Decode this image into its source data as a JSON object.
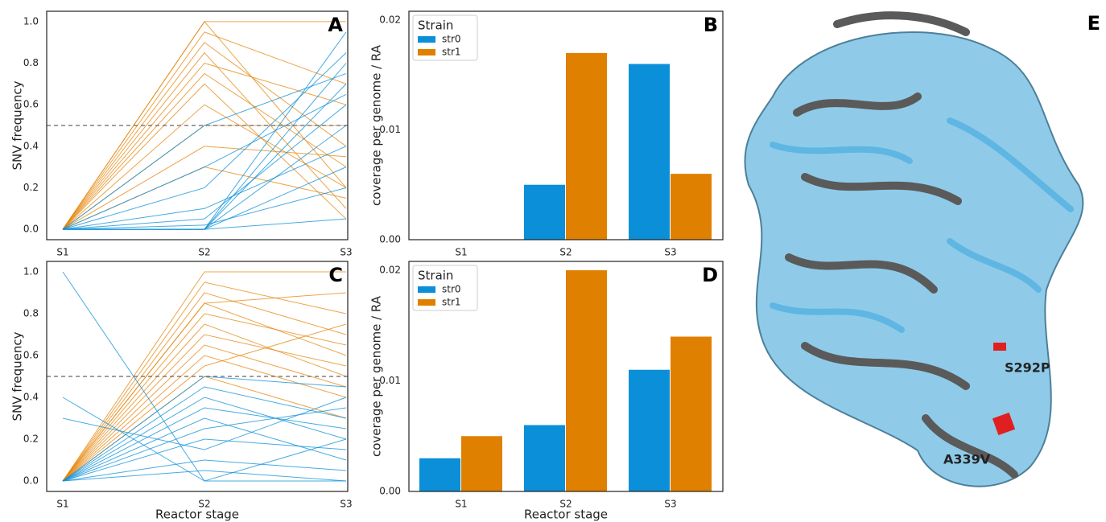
{
  "chart_data": [
    {
      "type": "line",
      "panel_label": "A",
      "y_label": "SNV frequency",
      "categories": [
        "S1",
        "S2",
        "S3"
      ],
      "ylim": [
        -0.05,
        1.05
      ],
      "yticks": [
        {
          "value": 0,
          "label": "0.0"
        },
        {
          "value": 0.2,
          "label": "0.2"
        },
        {
          "value": 0.4,
          "label": "0.4"
        },
        {
          "value": 0.6,
          "label": "0.6"
        },
        {
          "value": 0.8,
          "label": "0.8"
        },
        {
          "value": 1,
          "label": "1.0"
        }
      ],
      "hline": 0.5,
      "series": [
        {
          "color": "#e5850b",
          "values": [
            0,
            1,
            1
          ]
        },
        {
          "color": "#e5850b",
          "values": [
            0,
            1,
            0.2
          ]
        },
        {
          "color": "#e5850b",
          "values": [
            0,
            0.9,
            0.4
          ]
        },
        {
          "color": "#e5850b",
          "values": [
            0,
            0.85,
            0.1
          ]
        },
        {
          "color": "#e5850b",
          "values": [
            0,
            0.8,
            0.6
          ]
        },
        {
          "color": "#e5850b",
          "values": [
            0,
            0.75,
            0.3
          ]
        },
        {
          "color": "#e5850b",
          "values": [
            0,
            0.7,
            0.05
          ]
        },
        {
          "color": "#e5850b",
          "values": [
            0,
            0.5,
            0.5
          ]
        },
        {
          "color": "#e5850b",
          "values": [
            0,
            0.6,
            0.2
          ]
        },
        {
          "color": "#e5850b",
          "values": [
            0,
            0.95,
            0.7
          ]
        },
        {
          "color": "#e5850b",
          "values": [
            0,
            0.4,
            0.35
          ]
        },
        {
          "color": "#e5850b",
          "values": [
            0,
            0.3,
            0.15
          ]
        },
        {
          "color": "#0a8fd8",
          "values": [
            0,
            0,
            0.95
          ]
        },
        {
          "color": "#0a8fd8",
          "values": [
            0,
            0,
            0.8
          ]
        },
        {
          "color": "#0a8fd8",
          "values": [
            0,
            0,
            0.7
          ]
        },
        {
          "color": "#0a8fd8",
          "values": [
            0,
            0.05,
            0.6
          ]
        },
        {
          "color": "#0a8fd8",
          "values": [
            0,
            0,
            0.5
          ]
        },
        {
          "color": "#0a8fd8",
          "values": [
            0,
            0.1,
            0.4
          ]
        },
        {
          "color": "#0a8fd8",
          "values": [
            0,
            0.2,
            0.85
          ]
        },
        {
          "color": "#0a8fd8",
          "values": [
            0,
            0,
            0.3
          ]
        },
        {
          "color": "#0a8fd8",
          "values": [
            0,
            0.3,
            0.65
          ]
        },
        {
          "color": "#0a8fd8",
          "values": [
            0,
            0.5,
            0.75
          ]
        },
        {
          "color": "#0a8fd8",
          "values": [
            0,
            0,
            0.05
          ]
        },
        {
          "color": "#0a8fd8",
          "values": [
            0,
            0.02,
            0.2
          ]
        }
      ]
    },
    {
      "type": "bar",
      "panel_label": "B",
      "y_label": "coverage per genome / RA",
      "categories": [
        "S1",
        "S2",
        "S3"
      ],
      "ylim": [
        0,
        0.0208
      ],
      "yticks": [
        {
          "value": 0,
          "label": "0.00"
        },
        {
          "value": 0.01,
          "label": "0.01"
        },
        {
          "value": 0.02,
          "label": "0.02"
        }
      ],
      "legend_title": "Strain",
      "legend": "upper left",
      "series": [
        {
          "name": "str0",
          "color": "#0a8fd8",
          "values": [
            0,
            0.005,
            0.016
          ]
        },
        {
          "name": "str1",
          "color": "#e08000",
          "values": [
            0,
            0.017,
            0.006
          ]
        }
      ]
    },
    {
      "type": "line",
      "panel_label": "C",
      "y_label": "SNV frequency",
      "x_label": "Reactor stage",
      "categories": [
        "S1",
        "S2",
        "S3"
      ],
      "ylim": [
        -0.05,
        1.05
      ],
      "yticks": [
        {
          "value": 0,
          "label": "0.0"
        },
        {
          "value": 0.2,
          "label": "0.2"
        },
        {
          "value": 0.4,
          "label": "0.4"
        },
        {
          "value": 0.6,
          "label": "0.6"
        },
        {
          "value": 0.8,
          "label": "0.8"
        },
        {
          "value": 1,
          "label": "1.0"
        }
      ],
      "hline": 0.5,
      "series": [
        {
          "color": "#e5850b",
          "values": [
            0,
            1,
            1
          ]
        },
        {
          "color": "#e5850b",
          "values": [
            0,
            0.95,
            0.8
          ]
        },
        {
          "color": "#e5850b",
          "values": [
            0,
            0.9,
            0.7
          ]
        },
        {
          "color": "#e5850b",
          "values": [
            0,
            0.85,
            0.6
          ]
        },
        {
          "color": "#e5850b",
          "values": [
            0,
            0.8,
            0.65
          ]
        },
        {
          "color": "#e5850b",
          "values": [
            0,
            0.75,
            0.5
          ]
        },
        {
          "color": "#e5850b",
          "values": [
            0,
            0.7,
            0.55
          ]
        },
        {
          "color": "#e5850b",
          "values": [
            0,
            0.65,
            0.45
          ]
        },
        {
          "color": "#e5850b",
          "values": [
            0,
            0.6,
            0.4
          ]
        },
        {
          "color": "#e5850b",
          "values": [
            0,
            0.55,
            0.75
          ]
        },
        {
          "color": "#e5850b",
          "values": [
            0,
            0.5,
            0.3
          ]
        },
        {
          "color": "#e5850b",
          "values": [
            0,
            0.85,
            0.9
          ]
        },
        {
          "color": "#0a8fd8",
          "values": [
            1,
            0,
            0
          ]
        },
        {
          "color": "#0a8fd8",
          "values": [
            0,
            0.5,
            0.45
          ]
        },
        {
          "color": "#0a8fd8",
          "values": [
            0,
            0.45,
            0.3
          ]
        },
        {
          "color": "#0a8fd8",
          "values": [
            0,
            0.4,
            0.2
          ]
        },
        {
          "color": "#0a8fd8",
          "values": [
            0,
            0.35,
            0.25
          ]
        },
        {
          "color": "#0a8fd8",
          "values": [
            0,
            0.3,
            0.1
          ]
        },
        {
          "color": "#0a8fd8",
          "values": [
            0,
            0.25,
            0.35
          ]
        },
        {
          "color": "#0a8fd8",
          "values": [
            0,
            0.2,
            0.15
          ]
        },
        {
          "color": "#0a8fd8",
          "values": [
            0,
            0.1,
            0.05
          ]
        },
        {
          "color": "#0a8fd8",
          "values": [
            0,
            0.05,
            0
          ]
        },
        {
          "color": "#0a8fd8",
          "values": [
            0.4,
            0,
            0.2
          ]
        },
        {
          "color": "#0a8fd8",
          "values": [
            0.3,
            0.15,
            0.4
          ]
        }
      ]
    },
    {
      "type": "bar",
      "panel_label": "D",
      "y_label": "coverage per genome / RA",
      "x_label": "Reactor stage",
      "categories": [
        "S1",
        "S2",
        "S3"
      ],
      "ylim": [
        0,
        0.0208
      ],
      "yticks": [
        {
          "value": 0,
          "label": "0.00"
        },
        {
          "value": 0.01,
          "label": "0.01"
        },
        {
          "value": 0.02,
          "label": "0.02"
        }
      ],
      "legend_title": "Strain",
      "legend": "upper left",
      "series": [
        {
          "name": "str0",
          "color": "#0a8fd8",
          "values": [
            0.003,
            0.006,
            0.011
          ]
        },
        {
          "name": "str1",
          "color": "#e08000",
          "values": [
            0.005,
            0.02,
            0.014
          ]
        }
      ]
    }
  ],
  "structure": {
    "panel_label": "E",
    "annotations": [
      "S292P",
      "A339V"
    ]
  }
}
